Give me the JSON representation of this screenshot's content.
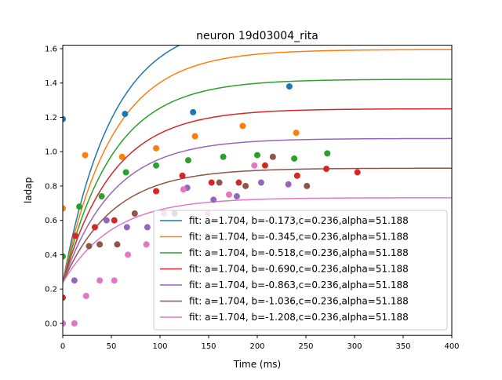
{
  "chart_data": {
    "type": "scatter",
    "title": "neuron 19d03004_rita",
    "xlabel": "Time (ms)",
    "ylabel": "ladap",
    "xlim": [
      0,
      400
    ],
    "ylim": [
      -0.07,
      1.62
    ],
    "xticks": [
      0,
      50,
      100,
      150,
      200,
      250,
      300,
      350,
      400
    ],
    "yticks": [
      0.0,
      0.2,
      0.4,
      0.6,
      0.8,
      1.0,
      1.2,
      1.4,
      1.6
    ],
    "xtick_labels": [
      "0",
      "50",
      "100",
      "150",
      "200",
      "250",
      "300",
      "350",
      "400"
    ],
    "ytick_labels": [
      "0.0",
      "0.2",
      "0.4",
      "0.6",
      "0.8",
      "1.0",
      "1.2",
      "1.4",
      "1.6"
    ],
    "grid": false,
    "legend_position": "lower-right",
    "series": [
      {
        "color": "#1f77b4",
        "fit_label": "fit: a=1.704, b=-0.173,c=0.236,alpha=51.188",
        "fit": {
          "a": 1.704,
          "b": -0.173,
          "c": 0.236,
          "alpha": 51.188
        },
        "points": [
          [
            0,
            1.19
          ],
          [
            64,
            1.22
          ],
          [
            134,
            1.23
          ],
          [
            233,
            1.38
          ]
        ]
      },
      {
        "color": "#ff7f0e",
        "fit_label": "fit: a=1.704, b=-0.345,c=0.236,alpha=51.188",
        "fit": {
          "a": 1.704,
          "b": -0.345,
          "c": 0.236,
          "alpha": 51.188
        },
        "points": [
          [
            0,
            0.67
          ],
          [
            23,
            0.98
          ],
          [
            61,
            0.97
          ],
          [
            96,
            1.02
          ],
          [
            136,
            1.09
          ],
          [
            185,
            1.15
          ],
          [
            240,
            1.11
          ]
        ]
      },
      {
        "color": "#2ca02c",
        "fit_label": "fit: a=1.704, b=-0.518,c=0.236,alpha=51.188",
        "fit": {
          "a": 1.704,
          "b": -0.518,
          "c": 0.236,
          "alpha": 51.188
        },
        "points": [
          [
            0,
            0.39
          ],
          [
            17,
            0.68
          ],
          [
            40,
            0.74
          ],
          [
            65,
            0.88
          ],
          [
            96,
            0.92
          ],
          [
            129,
            0.95
          ],
          [
            165,
            0.97
          ],
          [
            200,
            0.98
          ],
          [
            238,
            0.96
          ],
          [
            272,
            0.99
          ]
        ]
      },
      {
        "color": "#d62728",
        "fit_label": "fit: a=1.704, b=-0.690,c=0.236,alpha=51.188",
        "fit": {
          "a": 1.704,
          "b": -0.69,
          "c": 0.236,
          "alpha": 51.188
        },
        "points": [
          [
            0,
            0.15
          ],
          [
            13,
            0.51
          ],
          [
            33,
            0.56
          ],
          [
            53,
            0.6
          ],
          [
            96,
            0.77
          ],
          [
            123,
            0.86
          ],
          [
            153,
            0.82
          ],
          [
            181,
            0.82
          ],
          [
            208,
            0.92
          ],
          [
            241,
            0.86
          ],
          [
            271,
            0.9
          ],
          [
            303,
            0.88
          ]
        ]
      },
      {
        "color": "#9467bd",
        "fit_label": "fit: a=1.704, b=-0.863,c=0.236,alpha=51.188",
        "fit": {
          "a": 1.704,
          "b": -0.863,
          "c": 0.236,
          "alpha": 51.188
        },
        "points": [
          [
            0,
            0.0
          ],
          [
            12,
            0.25
          ],
          [
            45,
            0.6
          ],
          [
            66,
            0.56
          ],
          [
            87,
            0.56
          ],
          [
            128,
            0.79
          ],
          [
            155,
            0.72
          ],
          [
            179,
            0.74
          ],
          [
            204,
            0.82
          ],
          [
            232,
            0.81
          ]
        ]
      },
      {
        "color": "#8c564b",
        "fit_label": "fit: a=1.704, b=-1.036,c=0.236,alpha=51.188",
        "fit": {
          "a": 1.704,
          "b": -1.036,
          "c": 0.236,
          "alpha": 51.188
        },
        "points": [
          [
            27,
            0.45
          ],
          [
            38,
            0.46
          ],
          [
            56,
            0.46
          ],
          [
            74,
            0.64
          ],
          [
            115,
            0.64
          ],
          [
            161,
            0.82
          ],
          [
            188,
            0.8
          ],
          [
            216,
            0.97
          ],
          [
            251,
            0.8
          ]
        ]
      },
      {
        "color": "#e377c2",
        "fit_label": "fit: a=1.704, b=-1.208,c=0.236,alpha=51.188",
        "fit": {
          "a": 1.704,
          "b": -1.208,
          "c": 0.236,
          "alpha": 51.188
        },
        "points": [
          [
            0,
            0.0
          ],
          [
            12,
            0.0
          ],
          [
            24,
            0.16
          ],
          [
            38,
            0.25
          ],
          [
            53,
            0.25
          ],
          [
            67,
            0.4
          ],
          [
            86,
            0.46
          ],
          [
            104,
            0.64
          ],
          [
            124,
            0.78
          ],
          [
            149,
            0.64
          ],
          [
            171,
            0.75
          ],
          [
            197,
            0.92
          ]
        ]
      }
    ]
  }
}
